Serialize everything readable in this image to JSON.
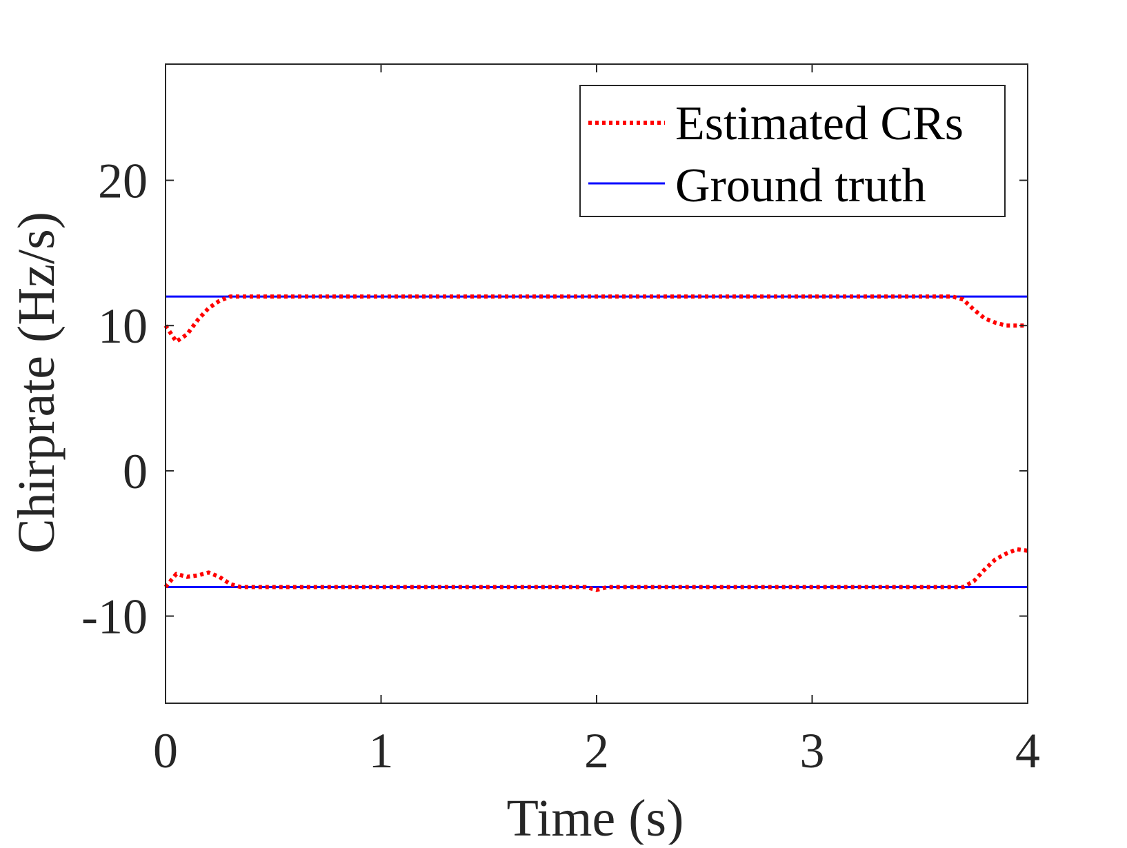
{
  "chart_data": {
    "type": "line",
    "title": "",
    "xlabel": "Time (s)",
    "ylabel": "Chirprate (Hz/s)",
    "xlim": [
      0,
      4
    ],
    "ylim": [
      -16,
      28
    ],
    "x_ticks": [
      0,
      1,
      2,
      3,
      4
    ],
    "y_ticks": [
      -10,
      0,
      10,
      20
    ],
    "x_tick_labels": [
      "0",
      "1",
      "2",
      "3",
      "4"
    ],
    "y_tick_labels": [
      "-10",
      "0",
      "10",
      "20"
    ],
    "grid": false,
    "legend": {
      "placement": "top-right",
      "entries": [
        "Estimated CRs",
        "Ground truth"
      ]
    },
    "series": [
      {
        "name": "Estimated CRs",
        "color": "#ff0000",
        "style": "dotted",
        "x": [
          0,
          0.05,
          0.1,
          0.15,
          0.2,
          0.25,
          0.3,
          0.35,
          0.4,
          0.6,
          1.0,
          1.5,
          2.0,
          2.5,
          3.0,
          3.5,
          3.65,
          3.7,
          3.75,
          3.8,
          3.85,
          3.9,
          3.95,
          4.0
        ],
        "y": [
          10.0,
          8.9,
          9.4,
          10.4,
          11.2,
          11.7,
          12.0,
          12.0,
          12.0,
          12.0,
          12.0,
          12.0,
          12.0,
          12.0,
          12.0,
          12.0,
          12.0,
          11.8,
          11.1,
          10.5,
          10.2,
          10.0,
          10.0,
          10.0
        ]
      },
      {
        "name": "Estimated CRs",
        "color": "#ff0000",
        "style": "dotted",
        "x": [
          0,
          0.05,
          0.1,
          0.15,
          0.2,
          0.25,
          0.3,
          0.35,
          0.4,
          1.0,
          1.5,
          1.95,
          2.0,
          2.05,
          2.5,
          3.0,
          3.5,
          3.7,
          3.75,
          3.8,
          3.85,
          3.9,
          3.95,
          4.0
        ],
        "y": [
          -8.0,
          -7.1,
          -7.3,
          -7.2,
          -7.0,
          -7.3,
          -7.8,
          -8.0,
          -8.0,
          -8.0,
          -8.0,
          -8.0,
          -8.2,
          -8.0,
          -8.0,
          -8.0,
          -8.0,
          -8.0,
          -7.6,
          -6.8,
          -6.1,
          -5.7,
          -5.4,
          -5.5
        ]
      },
      {
        "name": "Ground truth",
        "color": "#0000ff",
        "style": "solid",
        "x": [
          0,
          4
        ],
        "y": [
          12,
          12
        ]
      },
      {
        "name": "Ground truth",
        "color": "#0000ff",
        "style": "solid",
        "x": [
          0,
          4
        ],
        "y": [
          -8,
          -8
        ]
      }
    ]
  }
}
